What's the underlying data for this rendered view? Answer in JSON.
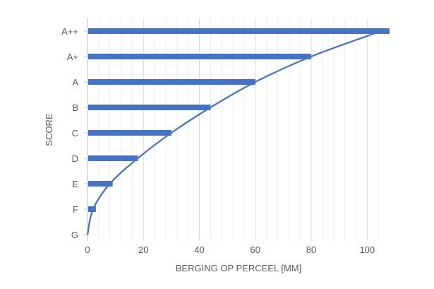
{
  "chart_data": {
    "type": "bar",
    "orientation": "horizontal",
    "title": "",
    "xlabel": "BERGING OP PERCEEL [MM]",
    "ylabel": "SCORE",
    "xlim": [
      0,
      108
    ],
    "x_ticks": [
      0,
      20,
      40,
      60,
      80,
      100
    ],
    "x_minor_step": 4,
    "grid": "vertical",
    "categories": [
      "G",
      "F",
      "E",
      "D",
      "C",
      "B",
      "A",
      "A+",
      "A++"
    ],
    "values": [
      0,
      3,
      9,
      18,
      30,
      44,
      60,
      80,
      108
    ],
    "curve": {
      "x": [
        0,
        2,
        8,
        18,
        30,
        44,
        60,
        80,
        105
      ],
      "y_category_index": [
        0,
        1,
        2,
        3,
        4,
        5,
        6,
        7,
        8
      ]
    },
    "colors": {
      "bar": "#4472C4",
      "curve": "#4472C4",
      "grid": "#D9D9D9",
      "text": "#595959"
    },
    "legend": "none"
  }
}
